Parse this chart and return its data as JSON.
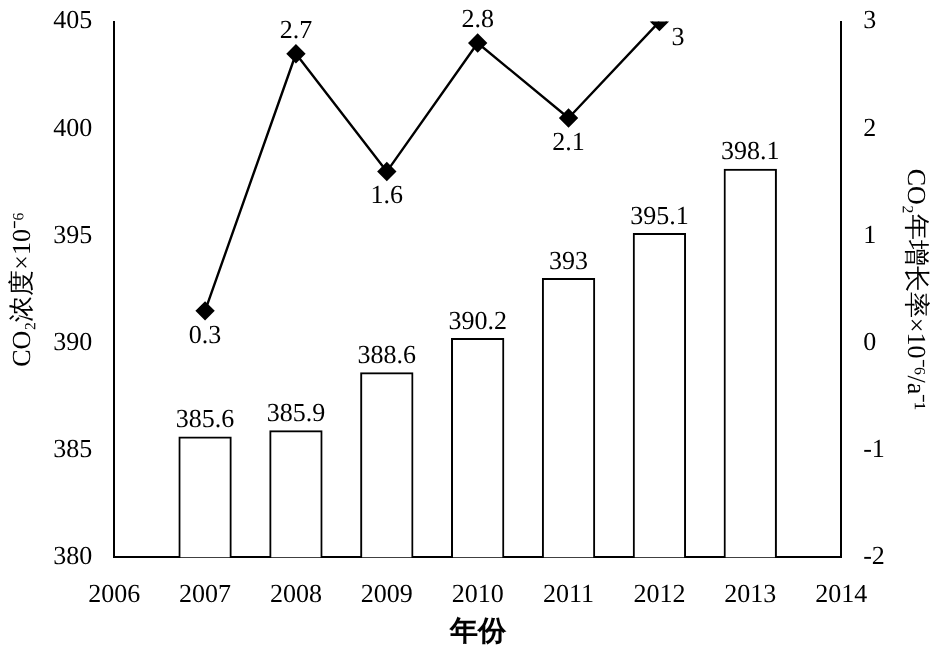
{
  "chart_data": {
    "type": "bar",
    "xlabel": "年份",
    "ylabel": "CO₂浓度×10⁻⁶",
    "y2label": "CO₂年增长率×10⁻⁶/a⁻¹",
    "x": [
      2007,
      2008,
      2009,
      2010,
      2011,
      2012,
      2013
    ],
    "series": [
      {
        "color": "#ffffff",
        "values": [
          385.6,
          385.9,
          388.6,
          390.2,
          393,
          395.1,
          398.1
        ]
      },
      {
        "type": "line",
        "axis": "y2",
        "color": "#000000",
        "values": [
          0.3,
          2.7,
          1.6,
          2.8,
          2.1,
          3,
          null
        ]
      }
    ],
    "data_labels": true,
    "marker": "diamond",
    "grid": false,
    "legend": false,
    "xlim": [
      2006,
      2014
    ],
    "xticks": [
      2006,
      2007,
      2008,
      2009,
      2010,
      2011,
      2012,
      2013,
      2014
    ],
    "ylim": [
      380,
      405
    ],
    "yticks": [
      380,
      385,
      390,
      395,
      400,
      405
    ],
    "y2lim": [
      -2,
      3
    ],
    "y2ticks": [
      -2,
      -1,
      0,
      1,
      2,
      3
    ]
  }
}
